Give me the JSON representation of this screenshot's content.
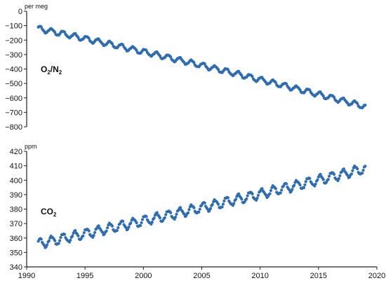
{
  "chart_data": [
    {
      "type": "scatter",
      "panel": "top",
      "unit_label": "per meg",
      "series_label": {
        "main": "O",
        "sub1": "2",
        "mid": "/N",
        "sub2": "2"
      },
      "ylim": [
        -800,
        0
      ],
      "yticks": [
        0,
        -100,
        -200,
        -300,
        -400,
        -500,
        -600,
        -700,
        -800
      ],
      "xlim": [
        1990,
        2020
      ],
      "color": "#2f6db0",
      "series": [
        {
          "x_start": 1991.0,
          "x_end": 2019.0,
          "trend_start": -120,
          "trend_end": -660,
          "trend_curvature": -60,
          "seasonal_amplitude": 18
        }
      ]
    },
    {
      "type": "scatter",
      "panel": "bottom",
      "unit_label": "ppm",
      "series_label": {
        "main": "CO",
        "sub1": "2"
      },
      "ylim": [
        340,
        420
      ],
      "yticks": [
        420,
        410,
        400,
        390,
        380,
        370,
        360,
        350,
        340
      ],
      "xlim": [
        1990,
        2020
      ],
      "xticks": [
        1990,
        1995,
        2000,
        2005,
        2010,
        2015,
        2020
      ],
      "color": "#2f6db0",
      "series": [
        {
          "x_start": 1991.0,
          "x_end": 2019.0,
          "trend_start": 356,
          "trend_end": 408,
          "trend_curvature": 4,
          "seasonal_amplitude": 3.2
        }
      ]
    }
  ]
}
